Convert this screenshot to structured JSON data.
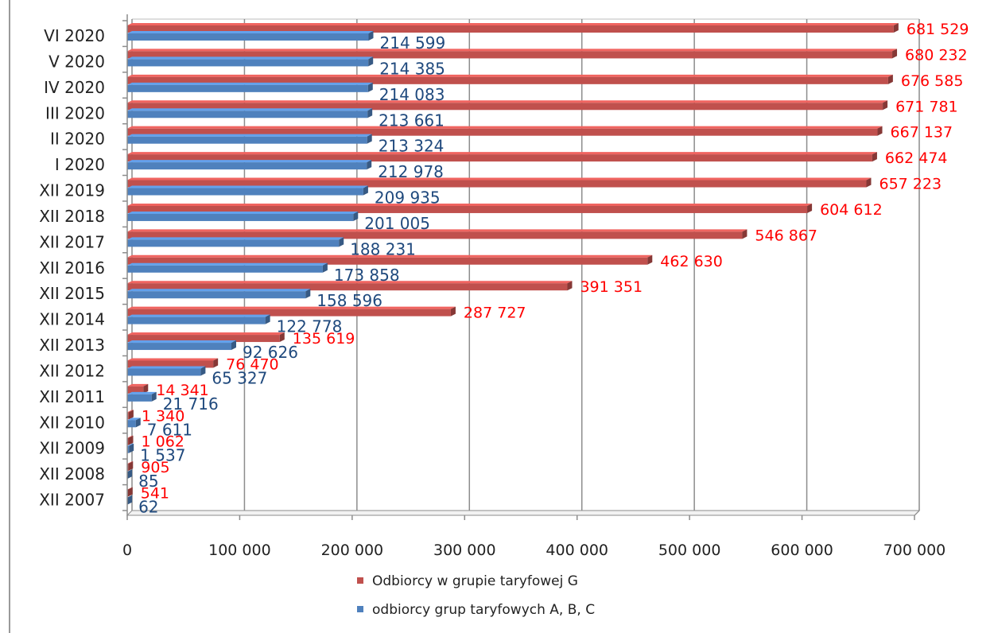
{
  "chart_data": {
    "type": "bar",
    "orientation": "horizontal",
    "title": "",
    "xlabel": "",
    "ylabel": "",
    "xlim": [
      0,
      700000
    ],
    "xticks": [
      0,
      100000,
      200000,
      300000,
      400000,
      500000,
      600000,
      700000
    ],
    "xtick_labels": [
      "0",
      "100 000",
      "200 000",
      "300 000",
      "400 000",
      "500 000",
      "600 000",
      "700 000"
    ],
    "grid": "vertical",
    "legend_position": "bottom",
    "categories": [
      "VI 2020",
      "V 2020",
      "IV 2020",
      "III 2020",
      "II 2020",
      "I 2020",
      "XII 2019",
      "XII 2018",
      "XII 2017",
      "XII 2016",
      "XII 2015",
      "XII 2014",
      "XII 2013",
      "XII 2012",
      "XII 2011",
      "XII 2010",
      "XII 2009",
      "XII 2008",
      "XII 2007"
    ],
    "series": [
      {
        "name": "Odbiorcy w grupie taryfowej G",
        "color": "#c0504d",
        "label_color": "#ff0000",
        "values": [
          681529,
          680232,
          676585,
          671781,
          667137,
          662474,
          657223,
          604612,
          546867,
          462630,
          391351,
          287727,
          135619,
          76470,
          14341,
          1340,
          1062,
          905,
          541
        ],
        "labels": [
          "681 529",
          "680 232",
          "676 585",
          "671 781",
          "667 137",
          "662 474",
          "657 223",
          "604 612",
          "546 867",
          "462 630",
          "391 351",
          "287 727",
          "135 619",
          "76 470",
          "14 341",
          "1 340",
          "1 062",
          "905",
          "541"
        ]
      },
      {
        "name": "odbiorcy grup taryfowych A, B, C",
        "color": "#4f81bd",
        "label_color": "#1f497d",
        "values": [
          214599,
          214385,
          214083,
          213661,
          213324,
          212978,
          209935,
          201005,
          188231,
          173858,
          158596,
          122778,
          92626,
          65327,
          21716,
          7611,
          1537,
          85,
          62
        ],
        "labels": [
          "214 599",
          "214 385",
          "214 083",
          "213 661",
          "213 324",
          "212 978",
          "209 935",
          "201 005",
          "188 231",
          "173 858",
          "158 596",
          "122 778",
          "92 626",
          "65 327",
          "21 716",
          "7 611",
          "1 537",
          "85",
          "62"
        ]
      }
    ]
  }
}
